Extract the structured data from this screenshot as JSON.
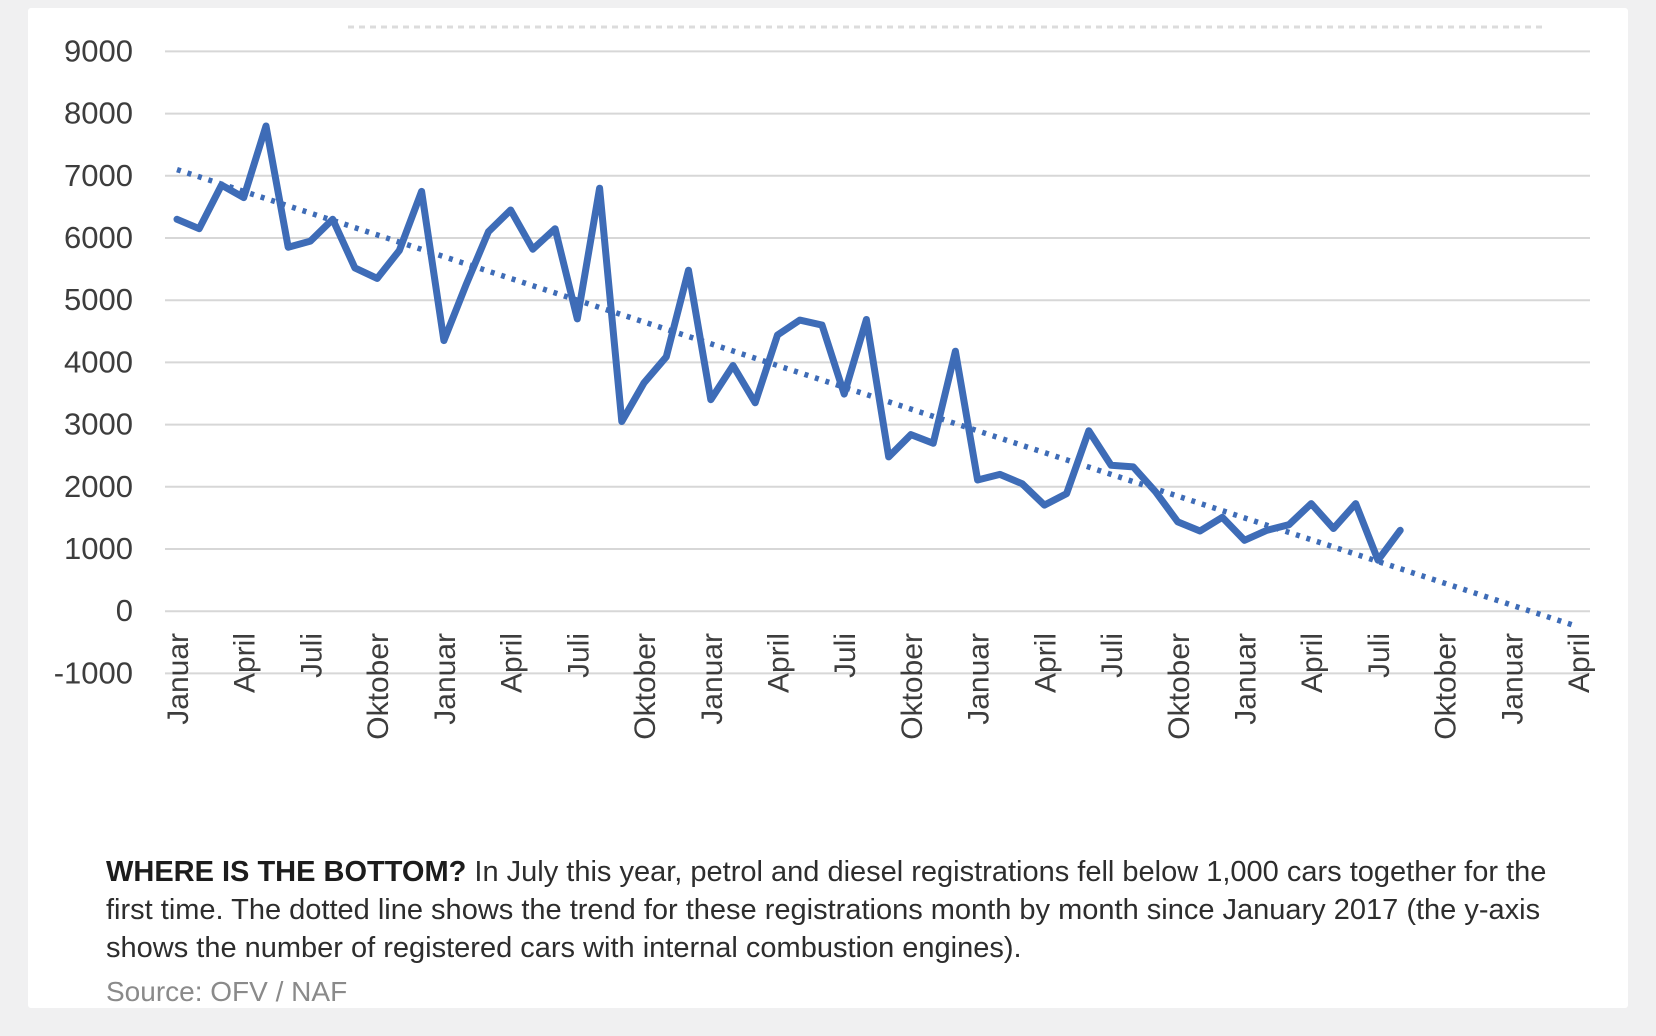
{
  "page": {
    "background": "#f0f0f1",
    "card_background": "#ffffff"
  },
  "caption": {
    "bold": "WHERE IS THE BOTTOM?",
    "text": " In July this year, petrol and diesel registrations fell below 1,000 cars together for the first time. The dotted line shows the trend for these registrations month by month since January 2017 (the y-axis shows the number of registered cars with internal combustion engines)."
  },
  "source": {
    "label": "Source: OFV / NAF"
  },
  "chart_data": {
    "type": "line",
    "title": "",
    "xlabel": "",
    "ylabel": "",
    "ylim": [
      -1000,
      9000
    ],
    "grid": "horizontal",
    "grid_color": "#d7d7d7",
    "axis_text_color": "#3d3d3d",
    "line_color": "#3E6CB7",
    "y_tick_labels": [
      "9000",
      "8000",
      "7000",
      "6000",
      "5000",
      "4000",
      "3000",
      "2000",
      "1000",
      "0",
      "-1000"
    ],
    "x_tick_labels": [
      "Januar",
      "April",
      "Juli",
      "Oktober",
      "Januar",
      "April",
      "Juli",
      "Oktober",
      "Januar",
      "April",
      "Juli",
      "Oktober",
      "Januar",
      "April",
      "Juli",
      "Oktober",
      "Januar",
      "April",
      "Juli",
      "Oktober",
      "Januar",
      "April"
    ],
    "x_tick_every_months": 3,
    "x_start_label": "Januar 2017",
    "x_step": "1 month",
    "series": [
      {
        "name": "Petrol and diesel car registrations per month",
        "style": "solid",
        "color": "#3E6CB7",
        "start_month_index": 0,
        "values": [
          6300,
          6150,
          6850,
          6650,
          7800,
          5850,
          5950,
          6300,
          5520,
          5350,
          5800,
          6750,
          4350,
          5250,
          6100,
          6450,
          5820,
          6150,
          4700,
          6800,
          3050,
          3670,
          4090,
          5480,
          3400,
          3950,
          3350,
          4440,
          4680,
          4600,
          3490,
          4690,
          2480,
          2840,
          2700,
          4180,
          2110,
          2200,
          2050,
          1705,
          1890,
          2900,
          2345,
          2320,
          1920,
          1435,
          1290,
          1510,
          1140,
          1300,
          1390,
          1730,
          1330,
          1730,
          820,
          1300
        ]
      },
      {
        "name": "Trend (dotted line)",
        "style": "dotted",
        "color": "#3E6CB7",
        "month_indices": [
          0,
          63
        ],
        "values": [
          7100,
          -250
        ]
      }
    ]
  }
}
